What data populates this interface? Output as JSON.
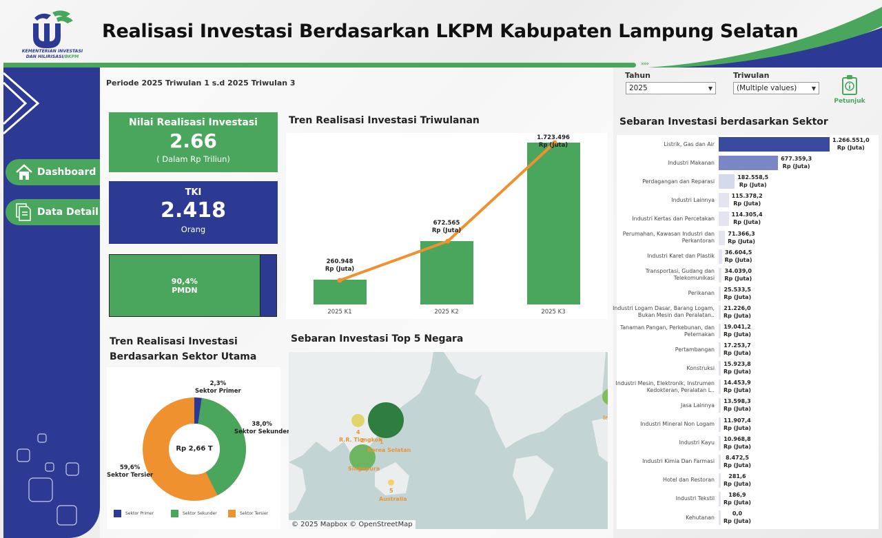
{
  "header": {
    "title": "Realisasi Investasi Berdasarkan LKPM Kabupaten Lampung Selatan",
    "logo_line1": "KEMENTERIAN INVESTASI",
    "logo_line2": "DAN HILIRISASI/",
    "logo_bkpm": "BKPM",
    "arrows": "››››",
    "colors": {
      "green": "#4aa55d",
      "blue": "#2c3a93",
      "orange": "#f0912f"
    }
  },
  "sidebar": {
    "items": [
      {
        "label": "Dashboard",
        "icon": "home-icon"
      },
      {
        "label": "Data Detail",
        "icon": "document-icon"
      }
    ]
  },
  "periode": "Periode 2025 Triwulan 1 s.d 2025 Triwulan 3",
  "filters": {
    "tahun_label": "Tahun",
    "tahun_value": "2025",
    "triwulan_label": "Triwulan",
    "triwulan_value": "(Multiple values)",
    "petunjuk_label": "Petunjuk"
  },
  "kpi": {
    "nilai": {
      "title": "Nilai Realisasi Investasi",
      "value": "2.66",
      "unit": "( Dalam Rp Triliun)"
    },
    "tki": {
      "title": "TKI",
      "value": "2.418",
      "unit": "Orang"
    },
    "pmdn": {
      "pct": "90,4%",
      "label": "PMDN",
      "share": 90.4
    }
  },
  "sections": {
    "trend_title": "Tren Realisasi Investasi Triwulanan",
    "sector_main_title_1": "Tren Realisasi Investasi",
    "sector_main_title_2": "Berdasarkan Sektor Utama",
    "map_title": "Sebaran Investasi Top 5 Negara",
    "sector_title": "Sebaran Investasi berdasarkan Sektor"
  },
  "chart_data": [
    {
      "type": "bar",
      "title": "Tren Realisasi Investasi Triwulanan",
      "categories": [
        "2025 K1",
        "2025 K2",
        "2025 K3"
      ],
      "values": [
        260948,
        672565,
        1723496
      ],
      "value_labels": [
        "260.948",
        "672.565",
        "1.723.496"
      ],
      "unit": "Rp (Juta)",
      "overlay_line": true,
      "xlabel": "",
      "ylabel": ""
    },
    {
      "type": "pie",
      "title": "Tren Realisasi Investasi Berdasarkan Sektor Utama",
      "center_label": "Rp 2,66 T",
      "categories": [
        "Sektor Primer",
        "Sektor Sekunder",
        "Sektor Tersier"
      ],
      "values": [
        2.3,
        38.0,
        59.6
      ],
      "value_labels": [
        "2,3%",
        "38,0%",
        "59,6%"
      ],
      "colors": [
        "#2c3a93",
        "#4aa55d",
        "#f0912f"
      ],
      "legend_position": "bottom"
    },
    {
      "type": "bar",
      "orientation": "horizontal",
      "title": "Sebaran Investasi berdasarkan Sektor",
      "unit": "Rp (Juta)",
      "categories": [
        "Listrik, Gas dan Air",
        "Industri Makanan",
        "Perdagangan dan Reparasi",
        "Industri Lainnya",
        "Industri Kertas dan Percetakan",
        "Perumahan, Kawasan Industri dan Perkantoran",
        "Industri Karet dan Plastik",
        "Transportasi, Gudang dan Telekomunikasi",
        "Perikanan",
        "Industri Logam Dasar, Barang Logam, Bukan Mesin dan Peralatan..",
        "Tanaman Pangan, Perkebunan, dan Peternakan",
        "Pertambangan",
        "Konstruksi",
        "Industri  Mesin, Elektronik, Instrumen Kedokteran, Peralatan L..",
        "Jasa Lainnya",
        "Industri Mineral Non Logam",
        "Industri Kayu",
        "Industri Kimia Dan Farmasi",
        "Hotel dan Restoran",
        "Industri Tekstil",
        "Kehutanan"
      ],
      "values": [
        1266551.0,
        677359.3,
        182558.5,
        115378.2,
        114305.4,
        71366.3,
        36604.5,
        34039.0,
        25533.5,
        21226.0,
        19041.2,
        17253.7,
        15923.8,
        14453.9,
        13598.3,
        11907.4,
        10968.8,
        8472.5,
        281.6,
        186.9,
        0.0
      ],
      "value_labels": [
        "1.266.551,0",
        "677.359,3",
        "182.558,5",
        "115.378,2",
        "114.305,4",
        "71.366,3",
        "36.604,5",
        "34.039,0",
        "25.533,5",
        "21.226,0",
        "19.041,2",
        "17.253,7",
        "15.923,8",
        "14.453,9",
        "13.598,3",
        "11.907,4",
        "10.968,8",
        "8.472,5",
        "281,6",
        "186,9",
        "0,0"
      ]
    }
  ],
  "map": {
    "attribution": "© 2025 Mapbox  © OpenStreetMap",
    "countries": [
      {
        "rank": "1",
        "name": "Korea Selatan"
      },
      {
        "rank": "2",
        "name": "Singapura"
      },
      {
        "rank": "4",
        "name": "R.R. Tiongkok"
      },
      {
        "rank": "5",
        "name": "Australia"
      },
      {
        "rank": "",
        "name": "In"
      }
    ]
  }
}
